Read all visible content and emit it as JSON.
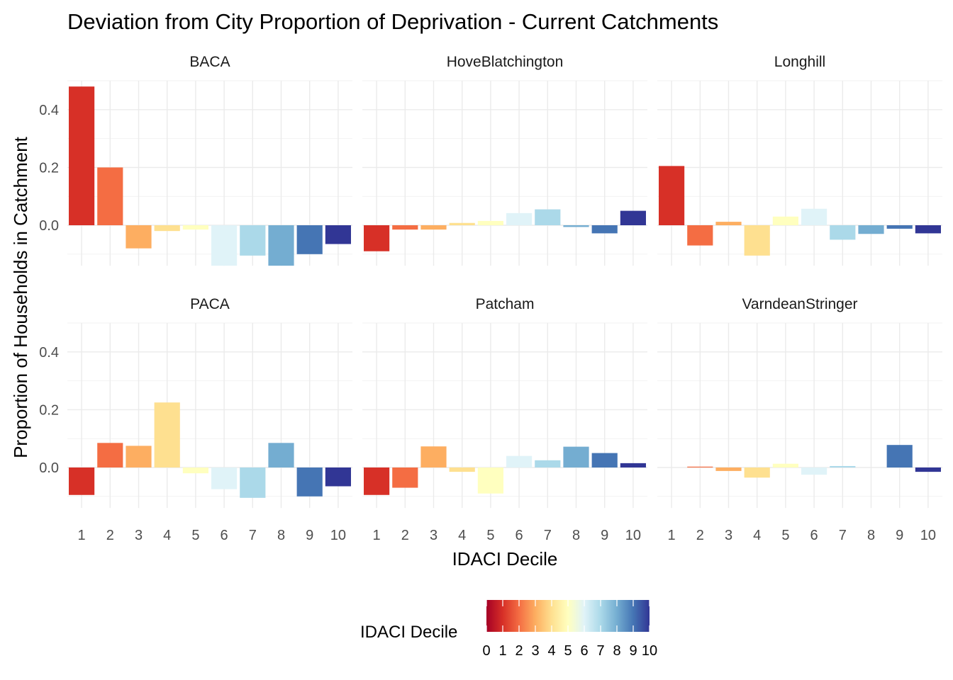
{
  "chart_data": {
    "type": "bar",
    "title": "Deviation from City Proportion of Deprivation - Current Catchments",
    "xlabel": "IDACI Decile",
    "ylabel": "Proportion of Households in Catchment",
    "categories": [
      "1",
      "2",
      "3",
      "4",
      "5",
      "6",
      "7",
      "8",
      "9",
      "10"
    ],
    "ylim": [
      -0.14,
      0.5
    ],
    "yticks": [
      "0.0",
      "0.2",
      "0.4"
    ],
    "grid": true,
    "legend": {
      "title": "IDACI Decile",
      "position": "bottom",
      "ticks": [
        "0",
        "1",
        "2",
        "3",
        "4",
        "5",
        "6",
        "7",
        "8",
        "9",
        "10"
      ],
      "gradient_colors": [
        "#a50026",
        "#d73027",
        "#f46d43",
        "#fdae61",
        "#fee090",
        "#ffffbf",
        "#e0f3f8",
        "#abd9e9",
        "#74add1",
        "#4575b4",
        "#313695"
      ]
    },
    "bar_colors": [
      "#d73027",
      "#f46d43",
      "#fdae61",
      "#fee090",
      "#ffffbf",
      "#e0f3f8",
      "#abd9e9",
      "#74add1",
      "#4575b4",
      "#313695"
    ],
    "panels": [
      {
        "name": "BACA",
        "values": [
          0.48,
          0.2,
          -0.08,
          -0.02,
          -0.015,
          -0.14,
          -0.105,
          -0.14,
          -0.1,
          -0.065
        ]
      },
      {
        "name": "HoveBlatchington",
        "values": [
          -0.09,
          -0.015,
          -0.015,
          0.008,
          0.015,
          0.042,
          0.055,
          -0.006,
          -0.028,
          0.05
        ]
      },
      {
        "name": "Longhill",
        "values": [
          0.205,
          -0.07,
          0.012,
          -0.105,
          0.03,
          0.057,
          -0.05,
          -0.03,
          -0.012,
          -0.028
        ]
      },
      {
        "name": "PACA",
        "values": [
          -0.095,
          0.085,
          0.075,
          0.225,
          -0.02,
          -0.075,
          -0.105,
          0.085,
          -0.1,
          -0.065
        ]
      },
      {
        "name": "Patcham",
        "values": [
          -0.095,
          -0.07,
          0.073,
          -0.015,
          -0.09,
          0.04,
          0.025,
          0.072,
          0.05,
          0.015
        ]
      },
      {
        "name": "VarndeanStringer",
        "values": [
          0.0,
          0.003,
          -0.012,
          -0.035,
          0.013,
          -0.025,
          0.005,
          0.0,
          0.078,
          -0.015
        ]
      }
    ]
  }
}
